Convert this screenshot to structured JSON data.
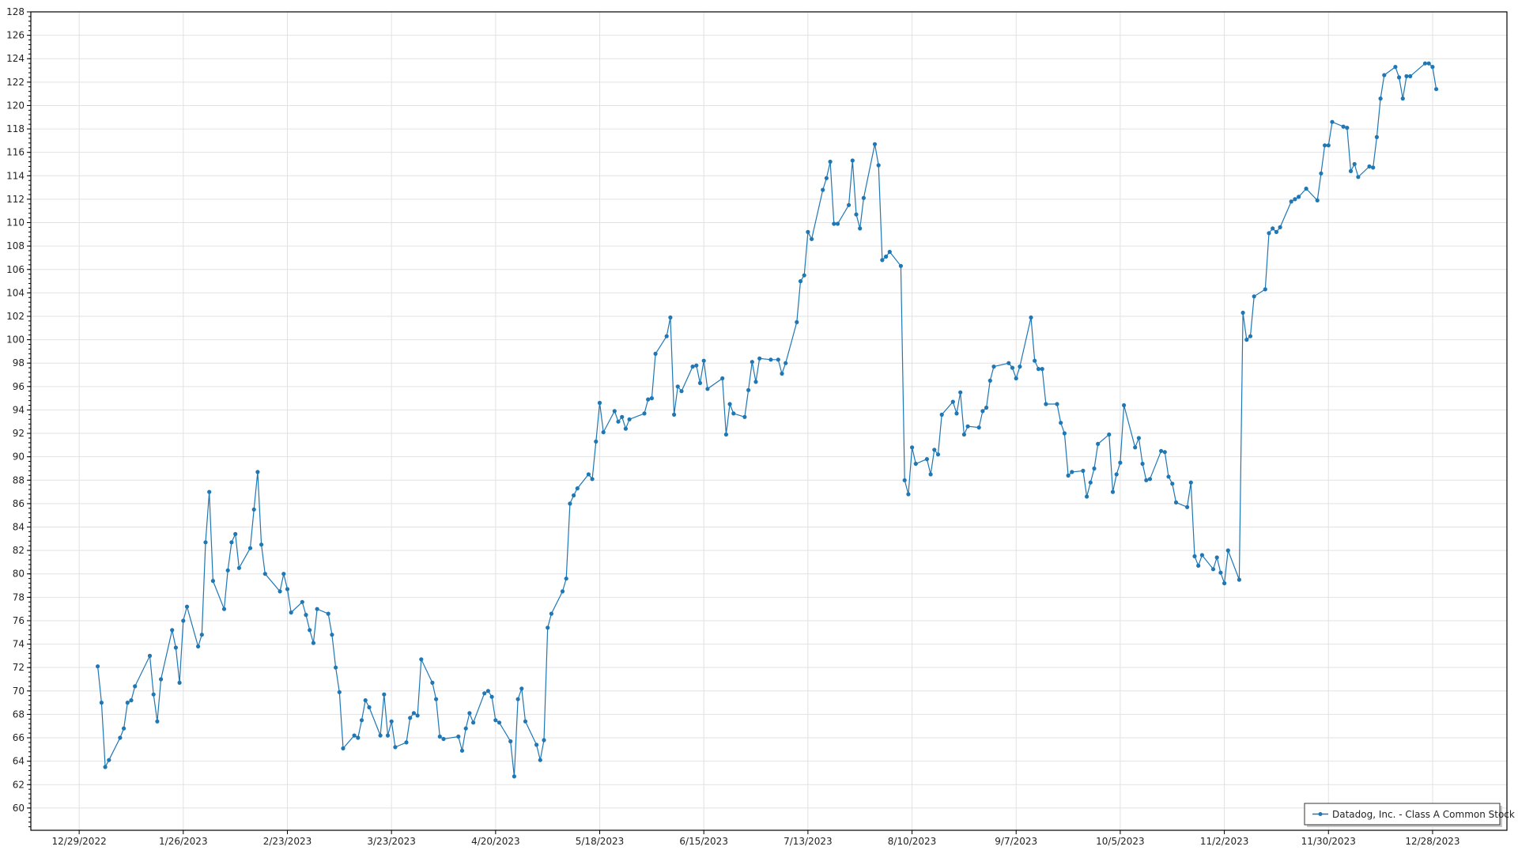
{
  "chart_data": {
    "type": "line",
    "title": "",
    "xlabel": "",
    "ylabel": "",
    "ylim": [
      58.1,
      128
    ],
    "xlim": [
      "12/16/2022",
      "1/17/2024"
    ],
    "y_ticks": [
      60,
      62,
      64,
      66,
      68,
      70,
      72,
      74,
      76,
      78,
      80,
      82,
      84,
      86,
      88,
      90,
      92,
      94,
      96,
      98,
      100,
      102,
      104,
      106,
      108,
      110,
      112,
      114,
      116,
      118,
      120,
      122,
      124,
      126,
      128
    ],
    "x_ticks": [
      "12/29/2022",
      "1/26/2023",
      "2/23/2023",
      "3/23/2023",
      "4/20/2023",
      "5/18/2023",
      "6/15/2023",
      "7/13/2023",
      "8/10/2023",
      "9/7/2023",
      "10/5/2023",
      "11/2/2023",
      "11/30/2023",
      "12/28/2023"
    ],
    "grid": true,
    "legend_position": "bottom-right",
    "colors": {
      "series": "#1f77b4",
      "grid": "#e2e2e2",
      "axis": "#000000"
    },
    "series": [
      {
        "name": "Datadog, Inc. - Class A Common Stock",
        "x": [
          "1/3/2023",
          "1/4/2023",
          "1/5/2023",
          "1/6/2023",
          "1/9/2023",
          "1/10/2023",
          "1/11/2023",
          "1/12/2023",
          "1/13/2023",
          "1/17/2023",
          "1/18/2023",
          "1/19/2023",
          "1/20/2023",
          "1/23/2023",
          "1/24/2023",
          "1/25/2023",
          "1/26/2023",
          "1/27/2023",
          "1/30/2023",
          "1/31/2023",
          "2/1/2023",
          "2/2/2023",
          "2/3/2023",
          "2/6/2023",
          "2/7/2023",
          "2/8/2023",
          "2/9/2023",
          "2/10/2023",
          "2/13/2023",
          "2/14/2023",
          "2/15/2023",
          "2/16/2023",
          "2/17/2023",
          "2/21/2023",
          "2/22/2023",
          "2/23/2023",
          "2/24/2023",
          "2/27/2023",
          "2/28/2023",
          "3/1/2023",
          "3/2/2023",
          "3/3/2023",
          "3/6/2023",
          "3/7/2023",
          "3/8/2023",
          "3/9/2023",
          "3/10/2023",
          "3/13/2023",
          "3/14/2023",
          "3/15/2023",
          "3/16/2023",
          "3/17/2023",
          "3/20/2023",
          "3/21/2023",
          "3/22/2023",
          "3/23/2023",
          "3/24/2023",
          "3/27/2023",
          "3/28/2023",
          "3/29/2023",
          "3/30/2023",
          "3/31/2023",
          "4/3/2023",
          "4/4/2023",
          "4/5/2023",
          "4/6/2023",
          "4/10/2023",
          "4/11/2023",
          "4/12/2023",
          "4/13/2023",
          "4/14/2023",
          "4/17/2023",
          "4/18/2023",
          "4/19/2023",
          "4/20/2023",
          "4/21/2023",
          "4/24/2023",
          "4/25/2023",
          "4/26/2023",
          "4/27/2023",
          "4/28/2023",
          "5/1/2023",
          "5/2/2023",
          "5/3/2023",
          "5/4/2023",
          "5/5/2023",
          "5/8/2023",
          "5/9/2023",
          "5/10/2023",
          "5/11/2023",
          "5/12/2023",
          "5/15/2023",
          "5/16/2023",
          "5/17/2023",
          "5/18/2023",
          "5/19/2023",
          "5/22/2023",
          "5/23/2023",
          "5/24/2023",
          "5/25/2023",
          "5/26/2023",
          "5/30/2023",
          "5/31/2023",
          "6/1/2023",
          "6/2/2023",
          "6/5/2023",
          "6/6/2023",
          "6/7/2023",
          "6/8/2023",
          "6/9/2023",
          "6/12/2023",
          "6/13/2023",
          "6/14/2023",
          "6/15/2023",
          "6/16/2023",
          "6/20/2023",
          "6/21/2023",
          "6/22/2023",
          "6/23/2023",
          "6/26/2023",
          "6/27/2023",
          "6/28/2023",
          "6/29/2023",
          "6/30/2023",
          "7/3/2023",
          "7/5/2023",
          "7/6/2023",
          "7/7/2023",
          "7/10/2023",
          "7/11/2023",
          "7/12/2023",
          "7/13/2023",
          "7/14/2023",
          "7/17/2023",
          "7/18/2023",
          "7/19/2023",
          "7/20/2023",
          "7/21/2023",
          "7/24/2023",
          "7/25/2023",
          "7/26/2023",
          "7/27/2023",
          "7/28/2023",
          "7/31/2023",
          "8/1/2023",
          "8/2/2023",
          "8/3/2023",
          "8/4/2023",
          "8/7/2023",
          "8/8/2023",
          "8/9/2023",
          "8/10/2023",
          "8/11/2023",
          "8/14/2023",
          "8/15/2023",
          "8/16/2023",
          "8/17/2023",
          "8/18/2023",
          "8/21/2023",
          "8/22/2023",
          "8/23/2023",
          "8/24/2023",
          "8/25/2023",
          "8/28/2023",
          "8/29/2023",
          "8/30/2023",
          "8/31/2023",
          "9/1/2023",
          "9/5/2023",
          "9/6/2023",
          "9/7/2023",
          "9/8/2023",
          "9/11/2023",
          "9/12/2023",
          "9/13/2023",
          "9/14/2023",
          "9/15/2023",
          "9/18/2023",
          "9/19/2023",
          "9/20/2023",
          "9/21/2023",
          "9/22/2023",
          "9/25/2023",
          "9/26/2023",
          "9/27/2023",
          "9/28/2023",
          "9/29/2023",
          "10/2/2023",
          "10/3/2023",
          "10/4/2023",
          "10/5/2023",
          "10/6/2023",
          "10/9/2023",
          "10/10/2023",
          "10/11/2023",
          "10/12/2023",
          "10/13/2023",
          "10/16/2023",
          "10/17/2023",
          "10/18/2023",
          "10/19/2023",
          "10/20/2023",
          "10/23/2023",
          "10/24/2023",
          "10/25/2023",
          "10/26/2023",
          "10/27/2023",
          "10/30/2023",
          "10/31/2023",
          "11/1/2023",
          "11/2/2023",
          "11/3/2023",
          "11/6/2023",
          "11/7/2023",
          "11/8/2023",
          "11/9/2023",
          "11/10/2023",
          "11/13/2023",
          "11/14/2023",
          "11/15/2023",
          "11/16/2023",
          "11/17/2023",
          "11/20/2023",
          "11/21/2023",
          "11/22/2023",
          "11/24/2023",
          "11/27/2023",
          "11/28/2023",
          "11/29/2023",
          "11/30/2023",
          "12/1/2023",
          "12/4/2023",
          "12/5/2023",
          "12/6/2023",
          "12/7/2023",
          "12/8/2023",
          "12/11/2023",
          "12/12/2023",
          "12/13/2023",
          "12/14/2023",
          "12/15/2023",
          "12/18/2023",
          "12/19/2023",
          "12/20/2023",
          "12/21/2023",
          "12/22/2023",
          "12/26/2023",
          "12/27/2023",
          "12/28/2023",
          "12/29/2023"
        ],
        "y": [
          72.1,
          69.0,
          63.5,
          64.1,
          66.0,
          66.8,
          69.0,
          69.2,
          70.4,
          73.0,
          69.7,
          67.4,
          71.0,
          75.2,
          73.7,
          70.7,
          76.0,
          77.2,
          73.8,
          74.8,
          82.7,
          87.0,
          79.4,
          77.0,
          80.3,
          82.7,
          83.4,
          80.5,
          82.2,
          85.5,
          88.7,
          82.5,
          80.0,
          78.5,
          80.0,
          78.7,
          76.7,
          77.6,
          76.5,
          75.2,
          74.1,
          77.0,
          76.6,
          74.8,
          72.0,
          69.9,
          65.1,
          66.2,
          66.0,
          67.5,
          69.2,
          68.6,
          66.2,
          69.7,
          66.2,
          67.4,
          65.2,
          65.6,
          67.7,
          68.1,
          67.9,
          72.7,
          70.7,
          69.3,
          66.1,
          65.9,
          66.1,
          64.9,
          66.8,
          68.1,
          67.3,
          69.8,
          70.0,
          69.5,
          67.5,
          67.3,
          65.7,
          62.7,
          69.3,
          70.2,
          67.4,
          65.4,
          64.1,
          65.8,
          75.4,
          76.6,
          78.5,
          79.6,
          86.0,
          86.7,
          87.3,
          88.5,
          88.1,
          91.3,
          94.6,
          92.1,
          93.9,
          93.0,
          93.4,
          92.4,
          93.2,
          93.7,
          94.9,
          95.0,
          98.8,
          100.3,
          101.9,
          93.6,
          96.0,
          95.6,
          97.7,
          97.8,
          96.3,
          98.2,
          95.8,
          96.7,
          91.9,
          94.5,
          93.7,
          93.4,
          95.7,
          98.1,
          96.4,
          98.4,
          98.3,
          98.3,
          97.1,
          98.0,
          101.5,
          105.0,
          105.5,
          109.2,
          108.6,
          112.8,
          113.8,
          115.2,
          109.9,
          109.9,
          111.5,
          115.3,
          110.7,
          109.5,
          112.1,
          116.7,
          114.9,
          106.8,
          107.1,
          107.5,
          106.3,
          88.0,
          86.8,
          90.8,
          89.4,
          89.8,
          88.5,
          90.6,
          90.2,
          93.6,
          94.7,
          93.7,
          95.5,
          91.9,
          92.6,
          92.5,
          93.9,
          94.2,
          96.5,
          97.7,
          98.0,
          97.6,
          96.7,
          97.7,
          101.9,
          98.2,
          97.5,
          97.5,
          94.5,
          94.5,
          92.9,
          92.0,
          88.4,
          88.7,
          88.8,
          86.6,
          87.8,
          89.0,
          91.1,
          91.9,
          87.0,
          88.5,
          89.5,
          94.4,
          90.8,
          91.6,
          89.4,
          88.0,
          88.1,
          90.5,
          90.4,
          88.3,
          87.7,
          86.1,
          85.7,
          87.8,
          81.5,
          80.7,
          81.6,
          80.4,
          81.4,
          80.1,
          79.2,
          82.0,
          79.5,
          102.3,
          100.0,
          100.3,
          103.7,
          104.3,
          109.1,
          109.5,
          109.2,
          109.6,
          111.8,
          112.0,
          112.2,
          112.9,
          111.9,
          114.2,
          116.6,
          116.6,
          118.6,
          118.2,
          118.1,
          114.4,
          115.0,
          113.9,
          114.8,
          114.7,
          117.3,
          120.6,
          122.6,
          123.3,
          122.4,
          120.6,
          122.5,
          122.5,
          123.6,
          123.6,
          123.3,
          121.4
        ]
      }
    ]
  }
}
